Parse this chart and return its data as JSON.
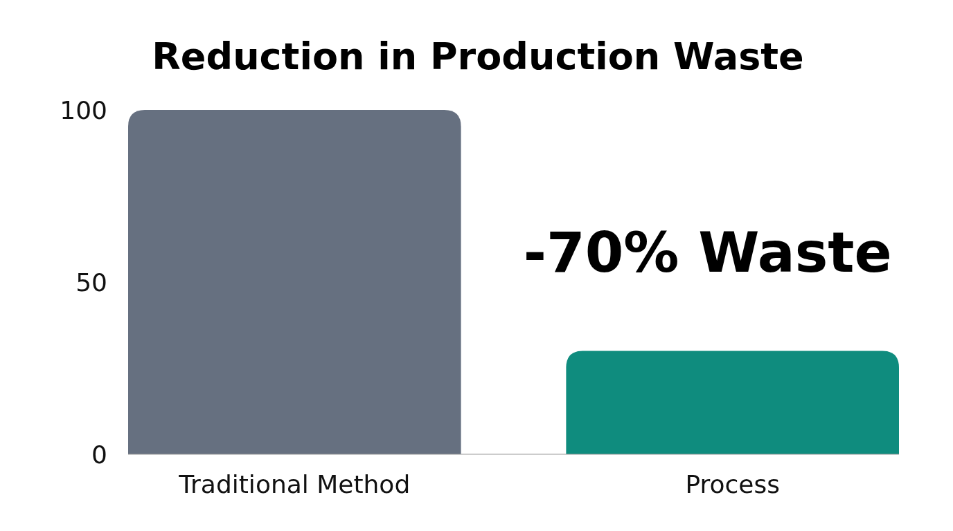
{
  "chart_data": {
    "type": "bar",
    "title": "Reduction in Production Waste",
    "categories": [
      "Traditional Method",
      "Process"
    ],
    "values": [
      100,
      30
    ],
    "colors": [
      "#667080",
      "#0f8c7e"
    ],
    "ylim": [
      0,
      100
    ],
    "yticks": [
      0,
      50,
      100
    ],
    "grid": false,
    "annotations": [
      "-70% Waste"
    ]
  }
}
